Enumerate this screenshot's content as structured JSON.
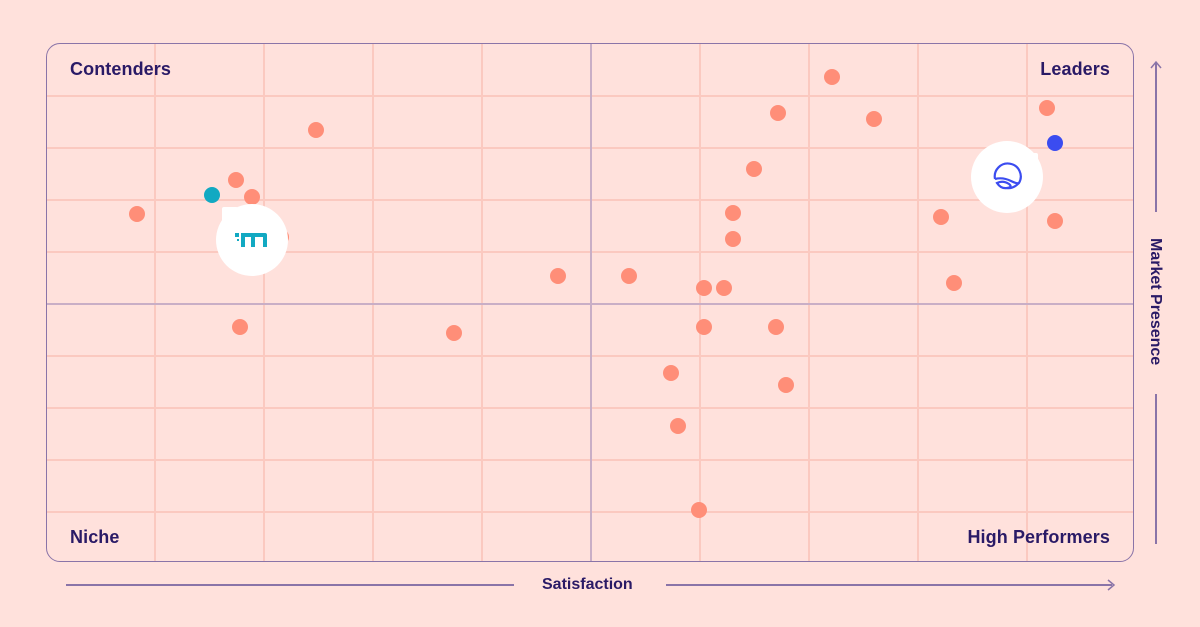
{
  "chart_data": {
    "type": "scatter",
    "title": "",
    "xlabel": "Satisfaction",
    "ylabel": "Market Presence",
    "grid": true,
    "quadrants": {
      "top_left": "Contenders",
      "top_right": "Leaders",
      "bottom_left": "Niche",
      "bottom_right": "High Performers"
    },
    "xlim": [
      0,
      100
    ],
    "ylim": [
      0,
      100
    ],
    "points": [
      {
        "x": 8.4,
        "y": 67.0,
        "color": "#FF8E78"
      },
      {
        "x": 17.5,
        "y": 73.6,
        "color": "#FF8E78"
      },
      {
        "x": 18.9,
        "y": 70.4,
        "color": "#FF8E78"
      },
      {
        "x": 21.6,
        "y": 62.6,
        "color": "#FF8E78"
      },
      {
        "x": 24.8,
        "y": 83.3,
        "color": "#FF8E78"
      },
      {
        "x": 17.8,
        "y": 45.3,
        "color": "#FF8E78"
      },
      {
        "x": 37.5,
        "y": 44.1,
        "color": "#FF8E78"
      },
      {
        "x": 47.1,
        "y": 55.1,
        "color": "#FF8E78"
      },
      {
        "x": 53.6,
        "y": 55.1,
        "color": "#FF8E78"
      },
      {
        "x": 60.5,
        "y": 52.8,
        "color": "#FF8E78"
      },
      {
        "x": 62.3,
        "y": 52.8,
        "color": "#FF8E78"
      },
      {
        "x": 60.5,
        "y": 45.3,
        "color": "#FF8E78"
      },
      {
        "x": 67.1,
        "y": 45.3,
        "color": "#FF8E78"
      },
      {
        "x": 57.4,
        "y": 36.4,
        "color": "#FF8E78"
      },
      {
        "x": 68.0,
        "y": 34.1,
        "color": "#FF8E78"
      },
      {
        "x": 58.1,
        "y": 26.2,
        "color": "#FF8E78"
      },
      {
        "x": 60.0,
        "y": 10.0,
        "color": "#FF8E78"
      },
      {
        "x": 63.1,
        "y": 62.2,
        "color": "#FF8E78"
      },
      {
        "x": 63.1,
        "y": 67.2,
        "color": "#FF8E78"
      },
      {
        "x": 65.1,
        "y": 75.7,
        "color": "#FF8E78"
      },
      {
        "x": 67.3,
        "y": 86.5,
        "color": "#FF8E78"
      },
      {
        "x": 72.2,
        "y": 93.4,
        "color": "#FF8E78"
      },
      {
        "x": 76.1,
        "y": 85.4,
        "color": "#FF8E78"
      },
      {
        "x": 82.3,
        "y": 66.5,
        "color": "#FF8E78"
      },
      {
        "x": 83.5,
        "y": 53.8,
        "color": "#FF8E78"
      },
      {
        "x": 92.0,
        "y": 87.5,
        "color": "#FF8E78"
      },
      {
        "x": 92.7,
        "y": 65.7,
        "color": "#FF8E78"
      },
      {
        "x": 15.3,
        "y": 70.7,
        "color": "#12A9C2",
        "highlight": "teal-logo-vendor"
      },
      {
        "x": 92.7,
        "y": 80.7,
        "color": "#3B4CF0",
        "highlight": "blue-logo-vendor"
      }
    ],
    "legend": []
  },
  "labels": {
    "contenders": "Contenders",
    "leaders": "Leaders",
    "niche": "Niche",
    "high_performers": "High Performers",
    "x_axis": "Satisfaction",
    "y_axis": "Market Presence"
  },
  "colors": {
    "background": "#FFE1DC",
    "dot": "#FF8E78",
    "teal": "#12A9C2",
    "blue": "#3B4CF0",
    "text": "#2A1A66",
    "frame": "#8A74A8"
  }
}
